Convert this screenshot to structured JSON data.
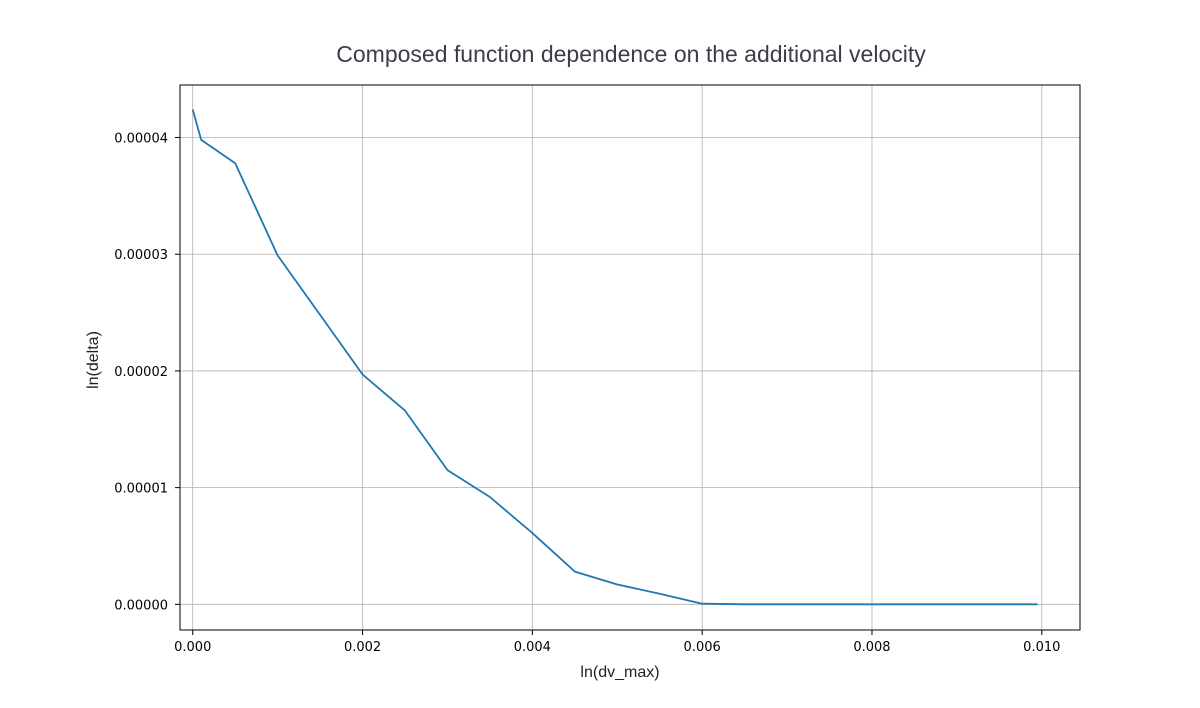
{
  "chart_data": {
    "type": "line",
    "title": "Composed function dependence on the additional velocity",
    "xlabel": "ln(dv_max)",
    "ylabel": "ln(delta)",
    "xlim": [
      -0.00015,
      0.01045
    ],
    "ylim": [
      -2.2e-06,
      4.45e-05
    ],
    "xticks": [
      0.0,
      0.002,
      0.004,
      0.006,
      0.008,
      0.01
    ],
    "xtick_labels": [
      "0.000",
      "0.002",
      "0.004",
      "0.006",
      "0.008",
      "0.010"
    ],
    "yticks": [
      0.0,
      1e-05,
      2e-05,
      3e-05,
      4e-05
    ],
    "ytick_labels": [
      "0.00000",
      "0.00001",
      "0.00002",
      "0.00003",
      "0.00004"
    ],
    "grid": true,
    "series": [
      {
        "color": "#1f77b4",
        "x": [
          0.0,
          0.0001,
          0.0005,
          0.001,
          0.0015,
          0.002,
          0.0025,
          0.003,
          0.0035,
          0.004,
          0.0045,
          0.005,
          0.0055,
          0.006,
          0.0065,
          0.007,
          0.0075,
          0.008,
          0.0085,
          0.009,
          0.0095,
          0.00995
        ],
        "y": [
          4.24e-05,
          3.98e-05,
          3.78e-05,
          2.99e-05,
          2.48e-05,
          1.97e-05,
          1.66e-05,
          1.15e-05,
          9.2e-06,
          6.1e-06,
          2.8e-06,
          1.7e-06,
          9e-07,
          5e-08,
          0.0,
          0.0,
          0.0,
          0.0,
          0.0,
          0.0,
          0.0,
          0.0
        ]
      }
    ]
  }
}
